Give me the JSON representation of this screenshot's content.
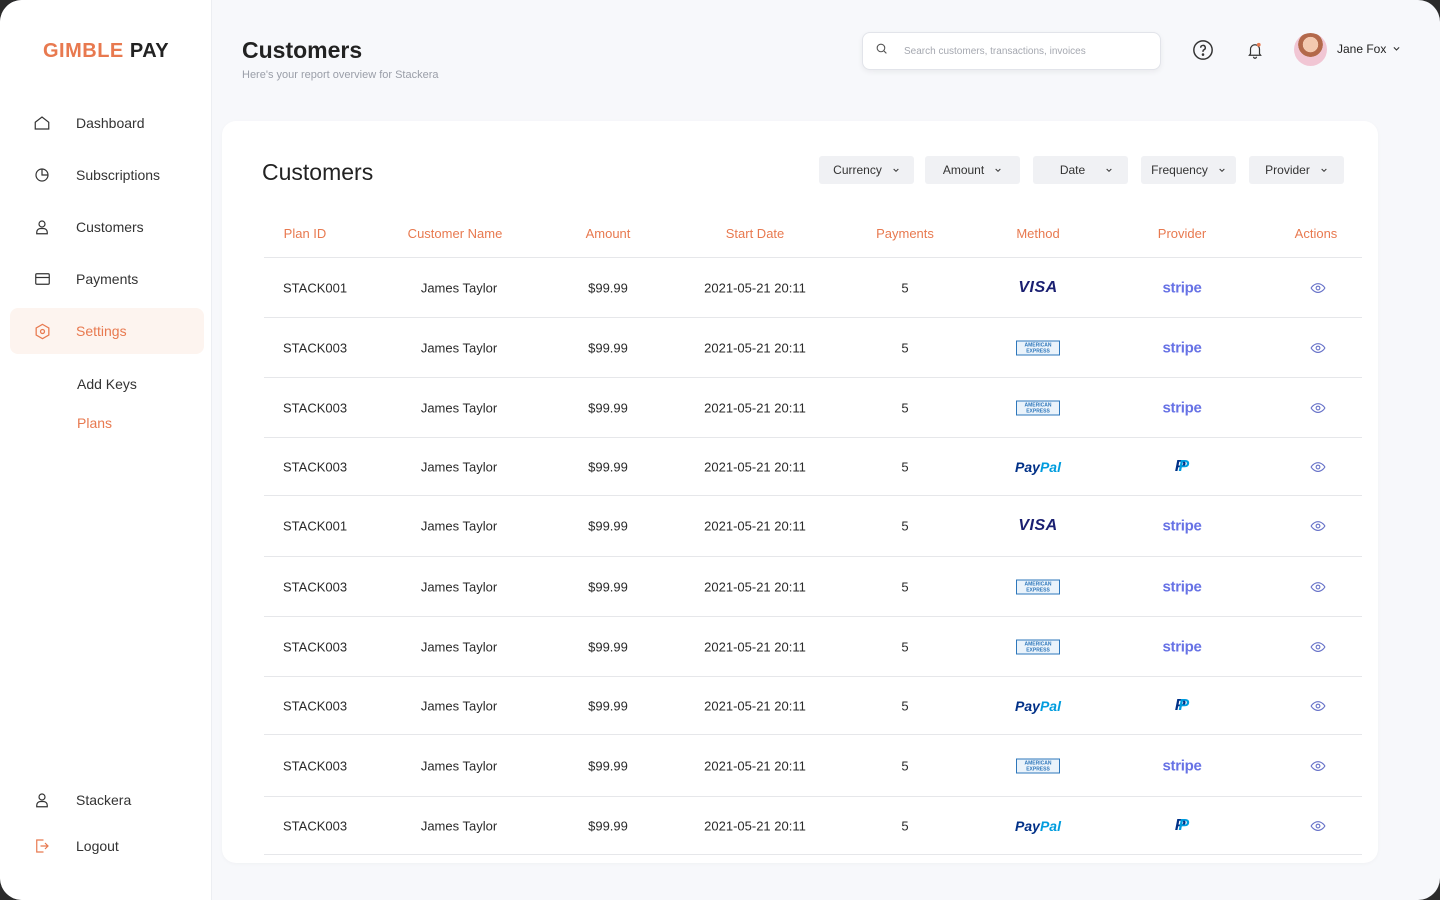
{
  "brand": {
    "part1": "GIMBLE",
    "part2": "PAY",
    "accent": "#e8794f"
  },
  "sidebar": {
    "items": [
      {
        "label": "Dashboard",
        "icon": "home-icon"
      },
      {
        "label": "Subscriptions",
        "icon": "pie-chart-icon"
      },
      {
        "label": "Customers",
        "icon": "user-icon"
      },
      {
        "label": "Payments",
        "icon": "credit-card-icon"
      },
      {
        "label": "Settings",
        "icon": "settings-hexagon-icon",
        "active": true
      }
    ],
    "sub_items": [
      {
        "label": "Add Keys"
      },
      {
        "label": "Plans",
        "active": true
      }
    ],
    "bottom": [
      {
        "label": "Stackera",
        "icon": "user-icon"
      },
      {
        "label": "Logout",
        "icon": "logout-icon"
      }
    ]
  },
  "header": {
    "title": "Customers",
    "subtitle": "Here's your report overview for Stackera",
    "search_placeholder": "Search customers, transactions, invoices",
    "user_name": "Jane Fox"
  },
  "card": {
    "title": "Customers",
    "filters": [
      "Currency",
      "Amount",
      "Date",
      "Frequency",
      "Provider"
    ],
    "columns": [
      "Plan ID",
      "Customer Name",
      "Amount",
      "Start Date",
      "Payments",
      "Method",
      "Provider",
      "Actions"
    ],
    "rows": [
      {
        "plan_id": "STACK001",
        "customer": "James Taylor",
        "amount": "$99.99",
        "start_date": "2021-05-21 20:11",
        "payments": "5",
        "method": "VISA",
        "provider": "stripe"
      },
      {
        "plan_id": "STACK003",
        "customer": "James Taylor",
        "amount": "$99.99",
        "start_date": "2021-05-21 20:11",
        "payments": "5",
        "method": "AMERICAN EXPRESS",
        "provider": "stripe"
      },
      {
        "plan_id": "STACK003",
        "customer": "James Taylor",
        "amount": "$99.99",
        "start_date": "2021-05-21 20:11",
        "payments": "5",
        "method": "AMERICAN EXPRESS",
        "provider": "stripe"
      },
      {
        "plan_id": "STACK003",
        "customer": "James Taylor",
        "amount": "$99.99",
        "start_date": "2021-05-21 20:11",
        "payments": "5",
        "method": "PayPal",
        "provider": "P"
      },
      {
        "plan_id": "STACK001",
        "customer": "James Taylor",
        "amount": "$99.99",
        "start_date": "2021-05-21 20:11",
        "payments": "5",
        "method": "VISA",
        "provider": "stripe"
      },
      {
        "plan_id": "STACK003",
        "customer": "James Taylor",
        "amount": "$99.99",
        "start_date": "2021-05-21 20:11",
        "payments": "5",
        "method": "AMERICAN EXPRESS",
        "provider": "stripe"
      },
      {
        "plan_id": "STACK003",
        "customer": "James Taylor",
        "amount": "$99.99",
        "start_date": "2021-05-21 20:11",
        "payments": "5",
        "method": "AMERICAN EXPRESS",
        "provider": "stripe"
      },
      {
        "plan_id": "STACK003",
        "customer": "James Taylor",
        "amount": "$99.99",
        "start_date": "2021-05-21 20:11",
        "payments": "5",
        "method": "PayPal",
        "provider": "P"
      },
      {
        "plan_id": "STACK003",
        "customer": "James Taylor",
        "amount": "$99.99",
        "start_date": "2021-05-21 20:11",
        "payments": "5",
        "method": "AMERICAN EXPRESS",
        "provider": "stripe"
      },
      {
        "plan_id": "STACK003",
        "customer": "James Taylor",
        "amount": "$99.99",
        "start_date": "2021-05-21 20:11",
        "payments": "5",
        "method": "PayPal",
        "provider": "P"
      }
    ]
  }
}
